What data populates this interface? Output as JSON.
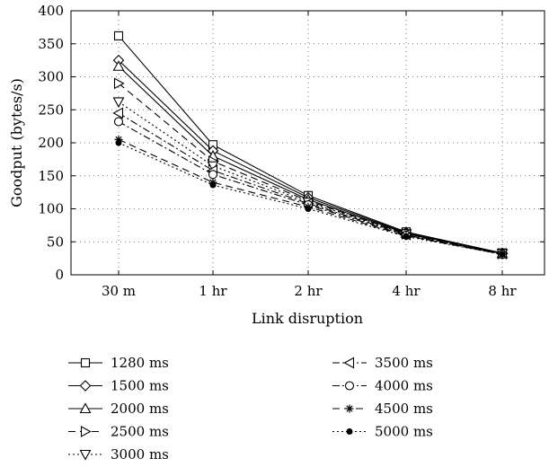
{
  "chart_data": {
    "type": "line",
    "categories": [
      "30 m",
      "1 hr",
      "2 hr",
      "4 hr",
      "8 hr"
    ],
    "xlabel": "Link disruption",
    "ylabel": "Goodput (bytes/s)",
    "ylim": [
      0,
      400
    ],
    "yticks": [
      0,
      50,
      100,
      150,
      200,
      250,
      300,
      350,
      400
    ],
    "grid": true,
    "legend_position": "bottom",
    "series": [
      {
        "name": "1280 ms",
        "marker": "square",
        "dash": "solid",
        "values": [
          362,
          197,
          120,
          65,
          33
        ]
      },
      {
        "name": "1500 ms",
        "marker": "diamond",
        "dash": "solid",
        "values": [
          325,
          188,
          117,
          64,
          33
        ]
      },
      {
        "name": "2000 ms",
        "marker": "triangle-up",
        "dash": "solid",
        "values": [
          316,
          180,
          114,
          63,
          32
        ]
      },
      {
        "name": "2500 ms",
        "marker": "triangle-right",
        "dash": "dashed",
        "values": [
          290,
          172,
          112,
          62,
          32
        ]
      },
      {
        "name": "3000 ms",
        "marker": "triangle-down",
        "dash": "dotted",
        "values": [
          262,
          165,
          110,
          62,
          32
        ]
      },
      {
        "name": "3500 ms",
        "marker": "triangle-left",
        "dash": "dashdot",
        "values": [
          245,
          158,
          108,
          61,
          32
        ]
      },
      {
        "name": "4000 ms",
        "marker": "circle",
        "dash": "dashdot",
        "values": [
          232,
          152,
          106,
          60,
          31
        ]
      },
      {
        "name": "4500 ms",
        "marker": "asterisk",
        "dash": "dashed",
        "values": [
          205,
          140,
          103,
          59,
          31
        ]
      },
      {
        "name": "5000 ms",
        "marker": "dot",
        "dash": "dotted",
        "values": [
          200,
          136,
          100,
          58,
          31
        ]
      }
    ]
  }
}
